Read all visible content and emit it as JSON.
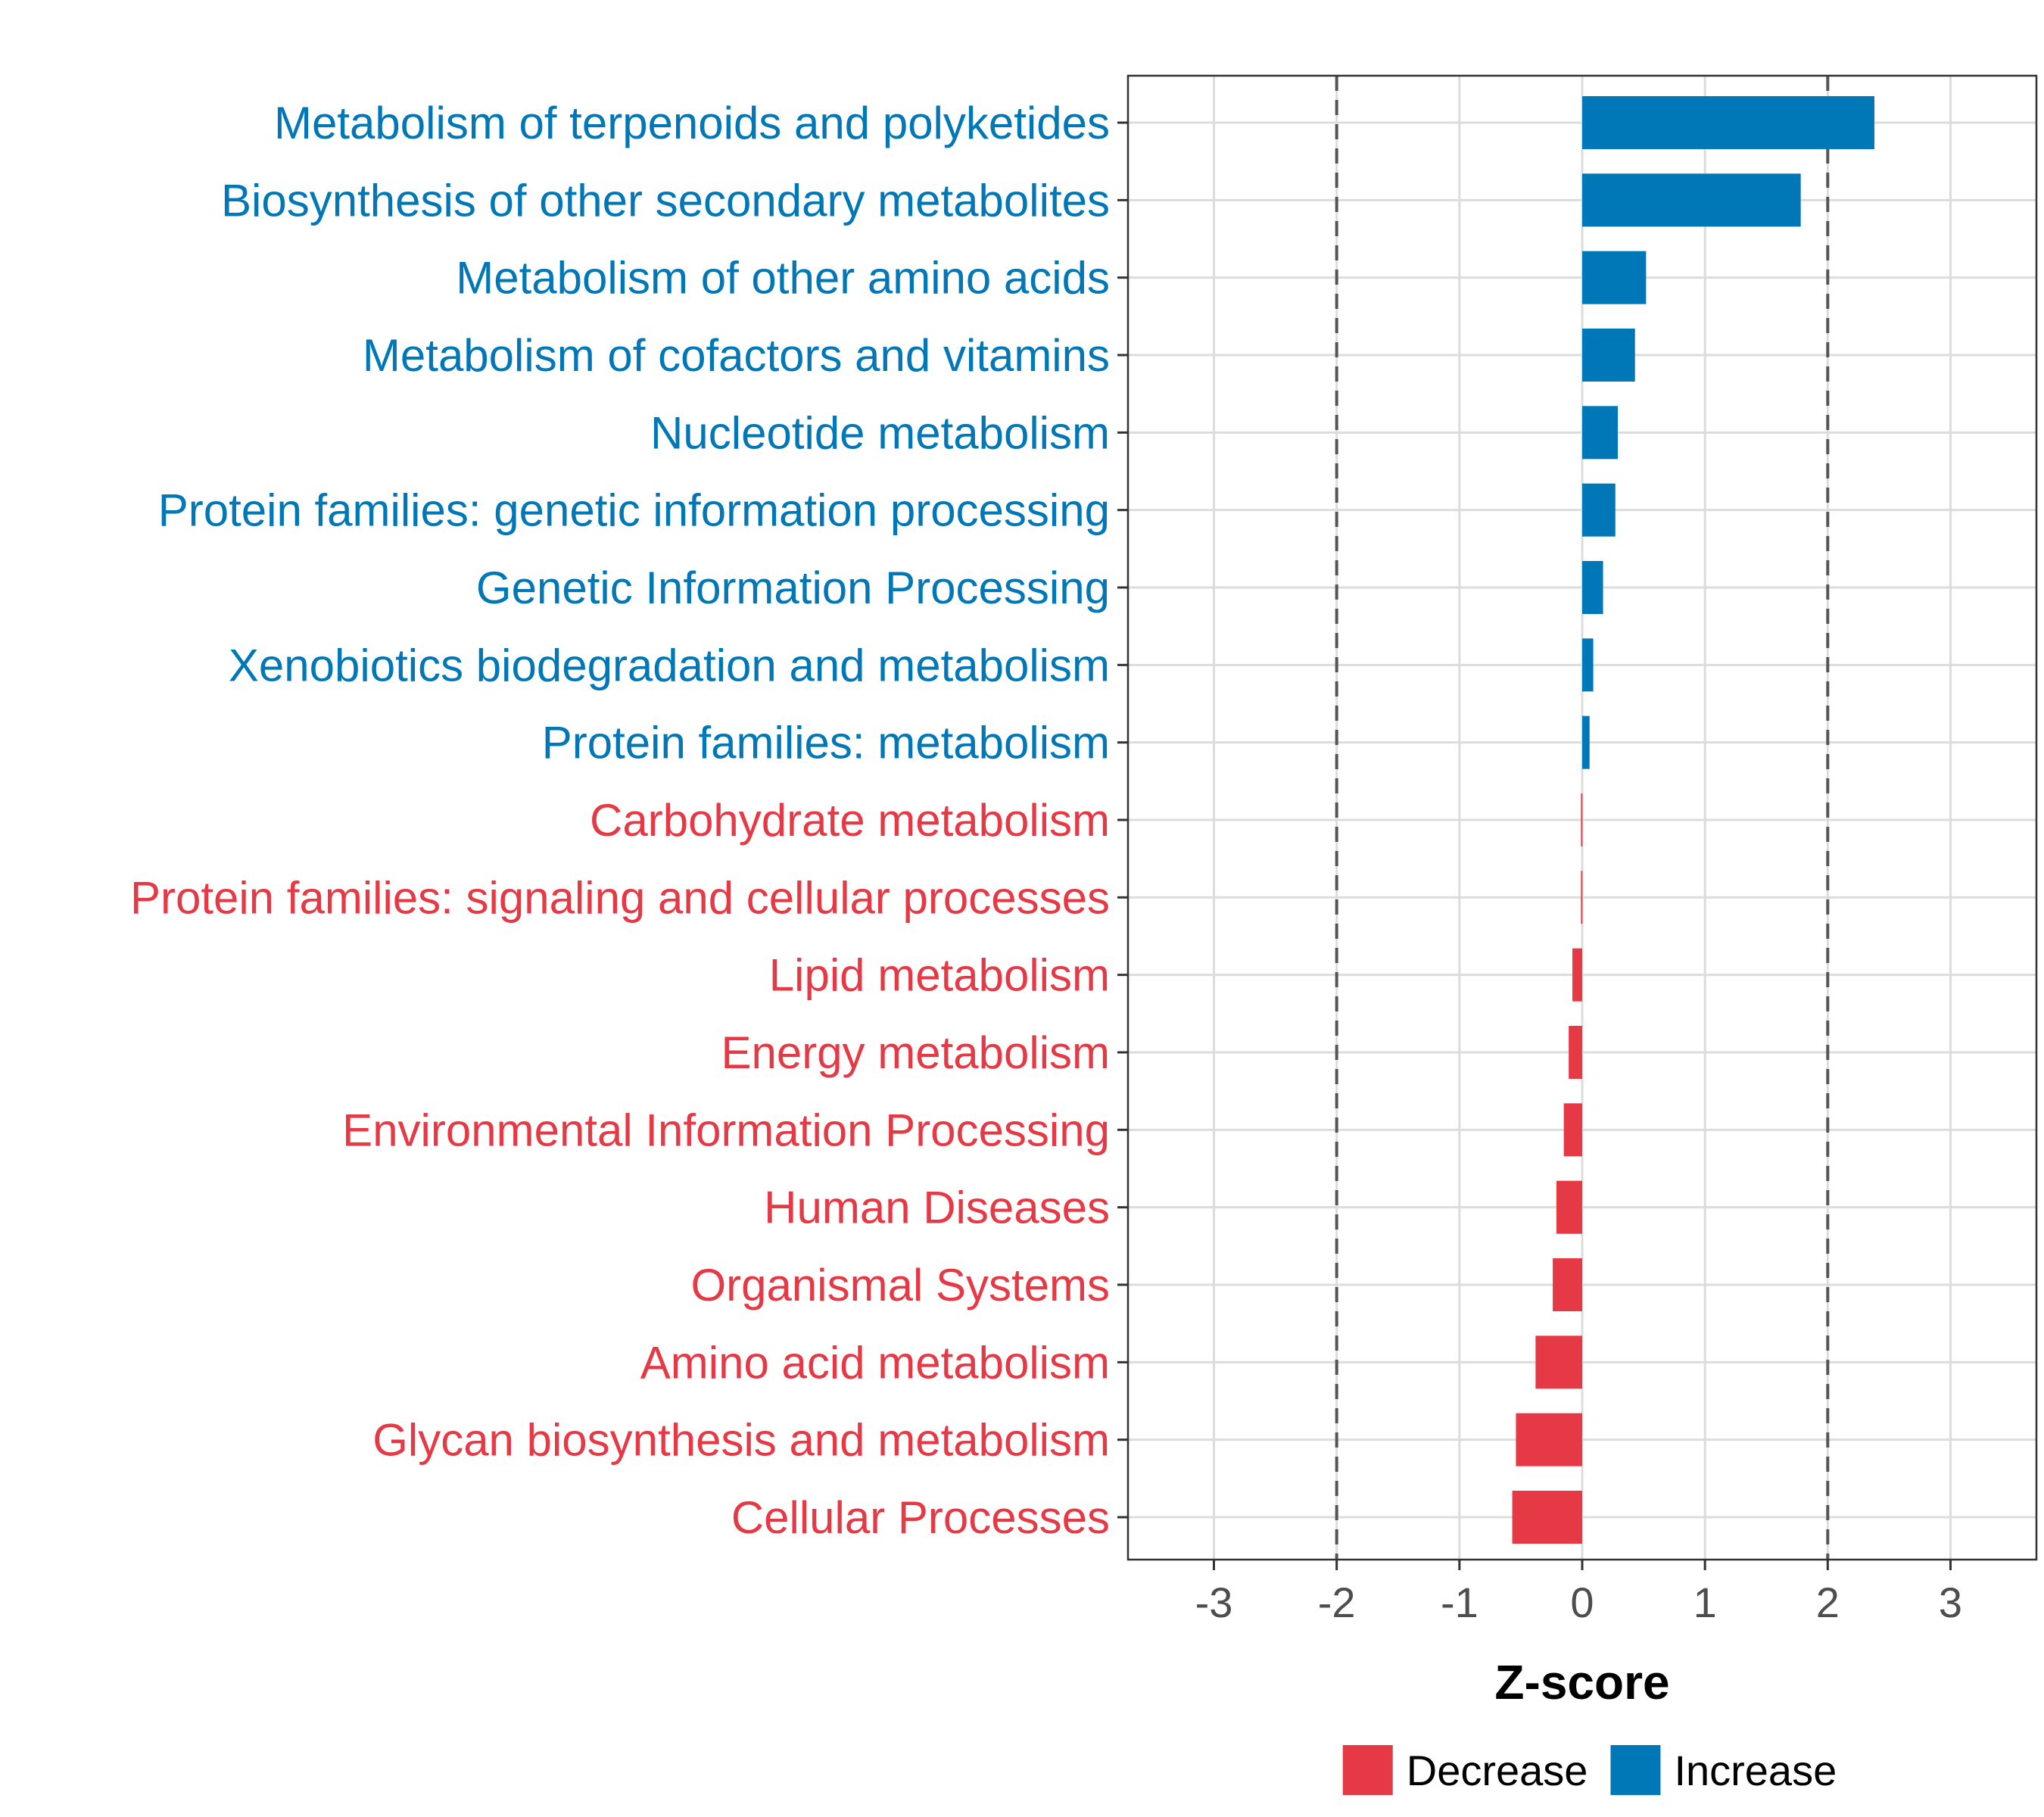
{
  "chart_data": {
    "type": "bar",
    "orientation": "horizontal",
    "xlabel": "Z-score",
    "xlim": [
      -3.7,
      3.7
    ],
    "xticks": [
      -3,
      -2,
      -1,
      0,
      1,
      2,
      3
    ],
    "reference_lines": [
      -2,
      2
    ],
    "grid": true,
    "legend_position": "bottom",
    "colors": {
      "Decrease": "#e63946",
      "Increase": "#0077b6"
    },
    "legend": [
      {
        "label": "Decrease",
        "color": "#e63946"
      },
      {
        "label": "Increase",
        "color": "#0077b6"
      }
    ],
    "bars": [
      {
        "category": "Metabolism of terpenoids and polyketides",
        "value": 2.38,
        "group": "Increase"
      },
      {
        "category": "Biosynthesis of other secondary metabolites",
        "value": 1.78,
        "group": "Increase"
      },
      {
        "category": "Metabolism of other amino acids",
        "value": 0.52,
        "group": "Increase"
      },
      {
        "category": "Metabolism of cofactors and vitamins",
        "value": 0.43,
        "group": "Increase"
      },
      {
        "category": "Nucleotide metabolism",
        "value": 0.29,
        "group": "Increase"
      },
      {
        "category": "Protein families: genetic information processing",
        "value": 0.27,
        "group": "Increase"
      },
      {
        "category": "Genetic Information Processing",
        "value": 0.17,
        "group": "Increase"
      },
      {
        "category": "Xenobiotics biodegradation and metabolism",
        "value": 0.09,
        "group": "Increase"
      },
      {
        "category": "Protein families: metabolism",
        "value": 0.06,
        "group": "Increase"
      },
      {
        "category": "Carbohydrate metabolism",
        "value": -0.01,
        "group": "Decrease"
      },
      {
        "category": "Protein families: signaling and cellular processes",
        "value": -0.01,
        "group": "Decrease"
      },
      {
        "category": "Lipid metabolism",
        "value": -0.08,
        "group": "Decrease"
      },
      {
        "category": "Energy metabolism",
        "value": -0.11,
        "group": "Decrease"
      },
      {
        "category": "Environmental Information Processing",
        "value": -0.15,
        "group": "Decrease"
      },
      {
        "category": "Human Diseases",
        "value": -0.21,
        "group": "Decrease"
      },
      {
        "category": "Organismal Systems",
        "value": -0.24,
        "group": "Decrease"
      },
      {
        "category": "Amino acid metabolism",
        "value": -0.38,
        "group": "Decrease"
      },
      {
        "category": "Glycan biosynthesis and metabolism",
        "value": -0.54,
        "group": "Decrease"
      },
      {
        "category": "Cellular Processes",
        "value": -0.57,
        "group": "Decrease"
      }
    ]
  }
}
